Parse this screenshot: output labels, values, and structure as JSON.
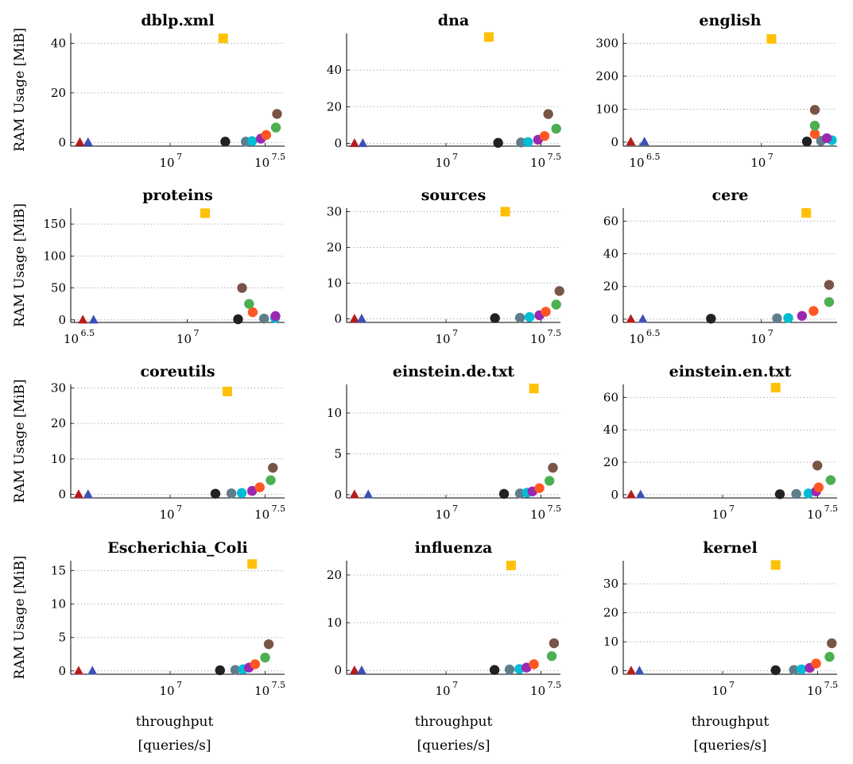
{
  "figure": {
    "ylabel": "RAM Usage [MiB]",
    "xlabel_line1": "throughput",
    "xlabel_line2": "[queries/s]"
  },
  "series_colors": {
    "square": "#FFC107",
    "black": "#212121",
    "slate": "#607D8B",
    "cyan": "#00BCD4",
    "purple": "#9C27B0",
    "orange": "#FF5722",
    "green": "#4CAF50",
    "brown": "#795548",
    "tri_red": "#B71C1C",
    "tri_blue": "#3F51B5"
  },
  "chart_data": [
    {
      "type": "scatter",
      "title": "dblp.xml",
      "x_scale": "log",
      "xlim": [
        3000000,
        40000000
      ],
      "ylim": [
        -1.5,
        44
      ],
      "xticks": [
        {
          "value": 10000000,
          "base": "10",
          "exp": "7"
        },
        {
          "value": 31622777,
          "base": "10",
          "exp": "7.5"
        }
      ],
      "yticks": [
        0,
        20,
        40
      ],
      "points": [
        {
          "s": "tri_red",
          "x": 3350000,
          "y": 0.2
        },
        {
          "s": "tri_blue",
          "x": 3700000,
          "y": 0.2
        },
        {
          "s": "square",
          "x": 19000000,
          "y": 42
        },
        {
          "s": "black",
          "x": 19500000,
          "y": 0.3
        },
        {
          "s": "slate",
          "x": 25000000,
          "y": 0.3
        },
        {
          "s": "cyan",
          "x": 27000000,
          "y": 0.5
        },
        {
          "s": "purple",
          "x": 30000000,
          "y": 1.5
        },
        {
          "s": "orange",
          "x": 32000000,
          "y": 3
        },
        {
          "s": "green",
          "x": 36000000,
          "y": 6
        },
        {
          "s": "brown",
          "x": 36500000,
          "y": 11.5
        }
      ]
    },
    {
      "type": "scatter",
      "title": "dna",
      "x_scale": "log",
      "xlim": [
        3000000,
        40000000
      ],
      "ylim": [
        -1.5,
        60
      ],
      "xticks": [
        {
          "value": 10000000,
          "base": "10",
          "exp": "7"
        },
        {
          "value": 31622777,
          "base": "10",
          "exp": "7.5"
        }
      ],
      "yticks": [
        0,
        20,
        40
      ],
      "points": [
        {
          "s": "tri_red",
          "x": 3300000,
          "y": 0.2
        },
        {
          "s": "tri_blue",
          "x": 3650000,
          "y": 0.2
        },
        {
          "s": "square",
          "x": 16800000,
          "y": 58
        },
        {
          "s": "black",
          "x": 18800000,
          "y": 0.3
        },
        {
          "s": "slate",
          "x": 24800000,
          "y": 0.5
        },
        {
          "s": "cyan",
          "x": 27000000,
          "y": 0.7
        },
        {
          "s": "purple",
          "x": 30500000,
          "y": 2
        },
        {
          "s": "orange",
          "x": 33000000,
          "y": 4
        },
        {
          "s": "green",
          "x": 38000000,
          "y": 8
        },
        {
          "s": "brown",
          "x": 34500000,
          "y": 16
        }
      ]
    },
    {
      "type": "scatter",
      "title": "english",
      "x_scale": "log",
      "xlim": [
        2700000,
        20500000
      ],
      "ylim": [
        -12,
        330
      ],
      "xticks": [
        {
          "value": 3162278,
          "base": "10",
          "exp": "6.5"
        },
        {
          "value": 10000000,
          "base": "10",
          "exp": "7"
        }
      ],
      "yticks": [
        0,
        100,
        200,
        300
      ],
      "points": [
        {
          "s": "tri_red",
          "x": 2900000,
          "y": 2
        },
        {
          "s": "tri_blue",
          "x": 3300000,
          "y": 2
        },
        {
          "s": "square",
          "x": 11000000,
          "y": 313
        },
        {
          "s": "black",
          "x": 15400000,
          "y": 2
        },
        {
          "s": "slate",
          "x": 17600000,
          "y": 4
        },
        {
          "s": "cyan",
          "x": 19500000,
          "y": 6
        },
        {
          "s": "purple",
          "x": 18600000,
          "y": 12
        },
        {
          "s": "orange",
          "x": 16600000,
          "y": 25
        },
        {
          "s": "green",
          "x": 16600000,
          "y": 50
        },
        {
          "s": "brown",
          "x": 16600000,
          "y": 98
        }
      ]
    },
    {
      "type": "scatter",
      "title": "proteins",
      "x_scale": "log",
      "xlim": [
        3050000,
        27000000
      ],
      "ylim": [
        -4,
        175
      ],
      "xticks": [
        {
          "value": 3162278,
          "base": "10",
          "exp": "6.5"
        },
        {
          "value": 10000000,
          "base": "10",
          "exp": "7"
        }
      ],
      "yticks": [
        0,
        50,
        100,
        150
      ],
      "points": [
        {
          "s": "tri_red",
          "x": 3450000,
          "y": 0.5
        },
        {
          "s": "tri_blue",
          "x": 3850000,
          "y": 0.5
        },
        {
          "s": "square",
          "x": 12000000,
          "y": 167
        },
        {
          "s": "black",
          "x": 16800000,
          "y": 1
        },
        {
          "s": "slate",
          "x": 21900000,
          "y": 2
        },
        {
          "s": "cyan",
          "x": 24500000,
          "y": 3
        },
        {
          "s": "purple",
          "x": 24600000,
          "y": 6
        },
        {
          "s": "orange",
          "x": 19500000,
          "y": 12
        },
        {
          "s": "green",
          "x": 18800000,
          "y": 25
        },
        {
          "s": "brown",
          "x": 17500000,
          "y": 50
        }
      ]
    },
    {
      "type": "scatter",
      "title": "sources",
      "x_scale": "log",
      "xlim": [
        3000000,
        40000000
      ],
      "ylim": [
        -1,
        31
      ],
      "xticks": [
        {
          "value": 10000000,
          "base": "10",
          "exp": "7"
        },
        {
          "value": 31622777,
          "base": "10",
          "exp": "7.5"
        }
      ],
      "yticks": [
        0,
        10,
        20,
        30
      ],
      "points": [
        {
          "s": "tri_red",
          "x": 3300000,
          "y": 0.1
        },
        {
          "s": "tri_blue",
          "x": 3600000,
          "y": 0.1
        },
        {
          "s": "square",
          "x": 20500000,
          "y": 30
        },
        {
          "s": "black",
          "x": 18100000,
          "y": 0.2
        },
        {
          "s": "slate",
          "x": 24500000,
          "y": 0.3
        },
        {
          "s": "cyan",
          "x": 27500000,
          "y": 0.5
        },
        {
          "s": "purple",
          "x": 31000000,
          "y": 1
        },
        {
          "s": "orange",
          "x": 33500000,
          "y": 2
        },
        {
          "s": "green",
          "x": 38000000,
          "y": 4
        },
        {
          "s": "brown",
          "x": 39500000,
          "y": 7.8
        }
      ]
    },
    {
      "type": "scatter",
      "title": "cere",
      "x_scale": "log",
      "xlim": [
        2700000,
        20500000
      ],
      "ylim": [
        -2,
        68
      ],
      "xticks": [
        {
          "value": 3162278,
          "base": "10",
          "exp": "6.5"
        },
        {
          "value": 10000000,
          "base": "10",
          "exp": "7"
        }
      ],
      "yticks": [
        0,
        20,
        40,
        60
      ],
      "points": [
        {
          "s": "tri_red",
          "x": 2900000,
          "y": 0.2
        },
        {
          "s": "tri_blue",
          "x": 3250000,
          "y": 0.2
        },
        {
          "s": "square",
          "x": 15300000,
          "y": 65
        },
        {
          "s": "black",
          "x": 6200000,
          "y": 0.3
        },
        {
          "s": "slate",
          "x": 11600000,
          "y": 0.5
        },
        {
          "s": "cyan",
          "x": 12900000,
          "y": 0.7
        },
        {
          "s": "purple",
          "x": 14700000,
          "y": 2
        },
        {
          "s": "orange",
          "x": 16400000,
          "y": 5
        },
        {
          "s": "green",
          "x": 19000000,
          "y": 10.5
        },
        {
          "s": "brown",
          "x": 19000000,
          "y": 21
        }
      ]
    },
    {
      "type": "scatter",
      "title": "coreutils",
      "x_scale": "log",
      "xlim": [
        3000000,
        40000000
      ],
      "ylim": [
        -1,
        31
      ],
      "xticks": [
        {
          "value": 10000000,
          "base": "10",
          "exp": "7"
        },
        {
          "value": 31622777,
          "base": "10",
          "exp": "7.5"
        }
      ],
      "yticks": [
        0,
        10,
        20,
        30
      ],
      "points": [
        {
          "s": "tri_red",
          "x": 3300000,
          "y": 0.1
        },
        {
          "s": "tri_blue",
          "x": 3700000,
          "y": 0.1
        },
        {
          "s": "square",
          "x": 20000000,
          "y": 29
        },
        {
          "s": "black",
          "x": 17300000,
          "y": 0.2
        },
        {
          "s": "slate",
          "x": 21000000,
          "y": 0.3
        },
        {
          "s": "cyan",
          "x": 23800000,
          "y": 0.4
        },
        {
          "s": "purple",
          "x": 27000000,
          "y": 1
        },
        {
          "s": "orange",
          "x": 29600000,
          "y": 2
        },
        {
          "s": "green",
          "x": 33800000,
          "y": 4
        },
        {
          "s": "brown",
          "x": 34700000,
          "y": 7.5
        }
      ]
    },
    {
      "type": "scatter",
      "title": "einstein.de.txt",
      "x_scale": "log",
      "xlim": [
        3000000,
        40000000
      ],
      "ylim": [
        -0.4,
        13.5
      ],
      "xticks": [
        {
          "value": 10000000,
          "base": "10",
          "exp": "7"
        },
        {
          "value": 31622777,
          "base": "10",
          "exp": "7.5"
        }
      ],
      "yticks": [
        0,
        5,
        10
      ],
      "points": [
        {
          "s": "tri_red",
          "x": 3300000,
          "y": 0.05
        },
        {
          "s": "tri_blue",
          "x": 3900000,
          "y": 0.05
        },
        {
          "s": "square",
          "x": 29000000,
          "y": 13
        },
        {
          "s": "black",
          "x": 20200000,
          "y": 0.1
        },
        {
          "s": "slate",
          "x": 24500000,
          "y": 0.15
        },
        {
          "s": "cyan",
          "x": 26700000,
          "y": 0.25
        },
        {
          "s": "purple",
          "x": 28500000,
          "y": 0.4
        },
        {
          "s": "orange",
          "x": 31000000,
          "y": 0.8
        },
        {
          "s": "green",
          "x": 35000000,
          "y": 1.7
        },
        {
          "s": "brown",
          "x": 36500000,
          "y": 3.3
        }
      ]
    },
    {
      "type": "scatter",
      "title": "einstein.en.txt",
      "x_scale": "log",
      "xlim": [
        3000000,
        40000000
      ],
      "ylim": [
        -2,
        68
      ],
      "xticks": [
        {
          "value": 10000000,
          "base": "10",
          "exp": "7"
        },
        {
          "value": 31622777,
          "base": "10",
          "exp": "7.5"
        }
      ],
      "yticks": [
        0,
        20,
        40,
        60
      ],
      "points": [
        {
          "s": "tri_red",
          "x": 3300000,
          "y": 0.2
        },
        {
          "s": "tri_blue",
          "x": 3700000,
          "y": 0.2
        },
        {
          "s": "square",
          "x": 19000000,
          "y": 66
        },
        {
          "s": "black",
          "x": 20000000,
          "y": 0.3
        },
        {
          "s": "slate",
          "x": 24400000,
          "y": 0.5
        },
        {
          "s": "cyan",
          "x": 28300000,
          "y": 0.8
        },
        {
          "s": "purple",
          "x": 31000000,
          "y": 2
        },
        {
          "s": "orange",
          "x": 32000000,
          "y": 4.5
        },
        {
          "s": "green",
          "x": 37000000,
          "y": 9
        },
        {
          "s": "brown",
          "x": 31500000,
          "y": 18
        }
      ]
    },
    {
      "type": "scatter",
      "title": "Escherichia_Coli",
      "x_scale": "log",
      "xlim": [
        3000000,
        40000000
      ],
      "ylim": [
        -0.5,
        16.5
      ],
      "xticks": [
        {
          "value": 10000000,
          "base": "10",
          "exp": "7"
        },
        {
          "value": 31622777,
          "base": "10",
          "exp": "7.5"
        }
      ],
      "yticks": [
        0,
        5,
        10,
        15
      ],
      "points": [
        {
          "s": "tri_red",
          "x": 3300000,
          "y": 0.05
        },
        {
          "s": "tri_blue",
          "x": 3900000,
          "y": 0.05
        },
        {
          "s": "square",
          "x": 27000000,
          "y": 16
        },
        {
          "s": "black",
          "x": 18300000,
          "y": 0.1
        },
        {
          "s": "slate",
          "x": 22000000,
          "y": 0.15
        },
        {
          "s": "cyan",
          "x": 24200000,
          "y": 0.25
        },
        {
          "s": "purple",
          "x": 26000000,
          "y": 0.5
        },
        {
          "s": "orange",
          "x": 28000000,
          "y": 1
        },
        {
          "s": "green",
          "x": 31600000,
          "y": 2
        },
        {
          "s": "brown",
          "x": 33000000,
          "y": 4
        }
      ]
    },
    {
      "type": "scatter",
      "title": "influenza",
      "x_scale": "log",
      "xlim": [
        3000000,
        40000000
      ],
      "ylim": [
        -0.8,
        23
      ],
      "xticks": [
        {
          "value": 10000000,
          "base": "10",
          "exp": "7"
        },
        {
          "value": 31622777,
          "base": "10",
          "exp": "7.5"
        }
      ],
      "yticks": [
        0,
        10,
        20
      ],
      "points": [
        {
          "s": "tri_red",
          "x": 3300000,
          "y": 0.05
        },
        {
          "s": "tri_blue",
          "x": 3600000,
          "y": 0.05
        },
        {
          "s": "square",
          "x": 22000000,
          "y": 22
        },
        {
          "s": "black",
          "x": 18000000,
          "y": 0.1
        },
        {
          "s": "slate",
          "x": 21600000,
          "y": 0.2
        },
        {
          "s": "cyan",
          "x": 24300000,
          "y": 0.3
        },
        {
          "s": "purple",
          "x": 26500000,
          "y": 0.6
        },
        {
          "s": "orange",
          "x": 29000000,
          "y": 1.3
        },
        {
          "s": "green",
          "x": 36000000,
          "y": 3
        },
        {
          "s": "brown",
          "x": 37000000,
          "y": 5.7
        }
      ]
    },
    {
      "type": "scatter",
      "title": "kernel",
      "x_scale": "log",
      "xlim": [
        3000000,
        40000000
      ],
      "ylim": [
        -1.2,
        38
      ],
      "xticks": [
        {
          "value": 10000000,
          "base": "10",
          "exp": "7"
        },
        {
          "value": 31622777,
          "base": "10",
          "exp": "7.5"
        }
      ],
      "yticks": [
        0,
        10,
        20,
        30
      ],
      "points": [
        {
          "s": "tri_red",
          "x": 3300000,
          "y": 0.1
        },
        {
          "s": "tri_blue",
          "x": 3650000,
          "y": 0.1
        },
        {
          "s": "square",
          "x": 19000000,
          "y": 36.5
        },
        {
          "s": "black",
          "x": 19000000,
          "y": 0.2
        },
        {
          "s": "slate",
          "x": 23700000,
          "y": 0.3
        },
        {
          "s": "cyan",
          "x": 26000000,
          "y": 0.5
        },
        {
          "s": "purple",
          "x": 28700000,
          "y": 1
        },
        {
          "s": "orange",
          "x": 31000000,
          "y": 2.5
        },
        {
          "s": "green",
          "x": 36500000,
          "y": 4.8
        },
        {
          "s": "brown",
          "x": 37500000,
          "y": 9.5
        }
      ]
    }
  ]
}
